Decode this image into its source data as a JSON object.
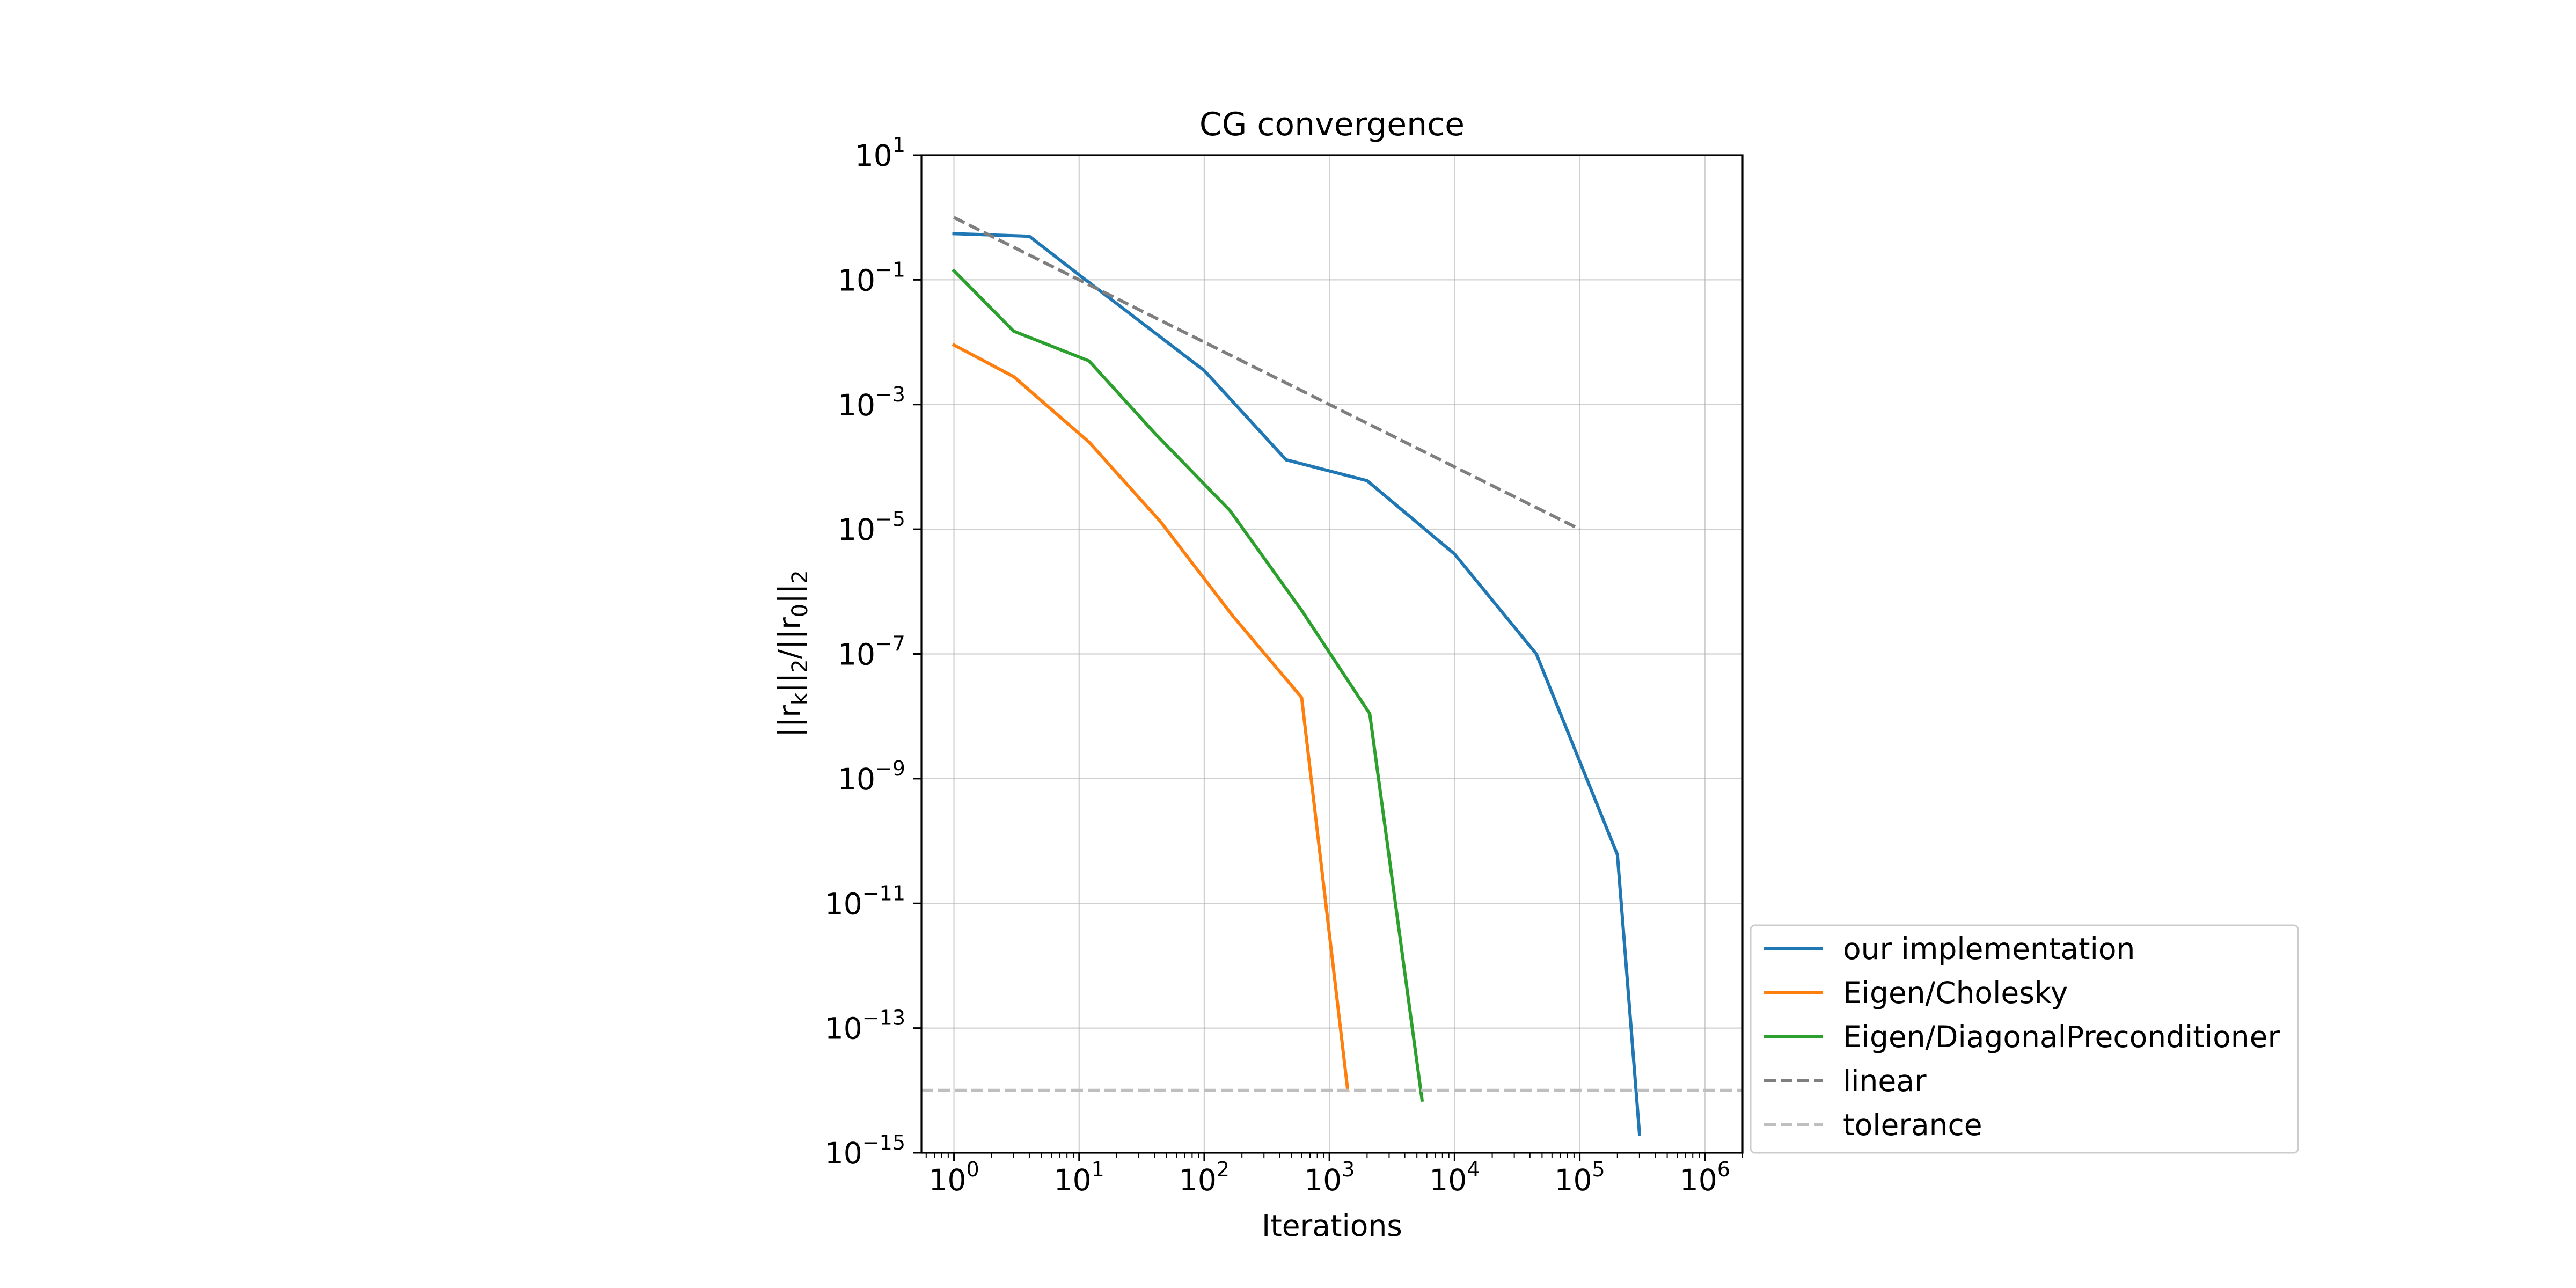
{
  "chart_data": {
    "type": "line",
    "title": "CG convergence",
    "xlabel": "Iterations",
    "ylabel": "||r_k||_2/||r_0||_2",
    "x_scale": "log",
    "y_scale": "log",
    "xlim": [
      0.55,
      2000000
    ],
    "ylim": [
      1e-15,
      10
    ],
    "x_ticks": [
      {
        "value": 1,
        "base": "10",
        "exp": "0"
      },
      {
        "value": 10,
        "base": "10",
        "exp": "1"
      },
      {
        "value": 100,
        "base": "10",
        "exp": "2"
      },
      {
        "value": 1000,
        "base": "10",
        "exp": "3"
      },
      {
        "value": 10000,
        "base": "10",
        "exp": "4"
      },
      {
        "value": 100000,
        "base": "10",
        "exp": "5"
      },
      {
        "value": 1000000,
        "base": "10",
        "exp": "6"
      }
    ],
    "y_ticks": [
      {
        "value": 10.0,
        "base": "10",
        "exp": "1"
      },
      {
        "value": 0.1,
        "base": "10",
        "exp": "−1"
      },
      {
        "value": 0.001,
        "base": "10",
        "exp": "−3"
      },
      {
        "value": 1e-05,
        "base": "10",
        "exp": "−5"
      },
      {
        "value": 1e-07,
        "base": "10",
        "exp": "−7"
      },
      {
        "value": 1e-09,
        "base": "10",
        "exp": "−9"
      },
      {
        "value": 1e-11,
        "base": "10",
        "exp": "−11"
      },
      {
        "value": 1e-13,
        "base": "10",
        "exp": "−13"
      },
      {
        "value": 1e-15,
        "base": "10",
        "exp": "−15"
      }
    ],
    "grid": true,
    "legend_position": "lower-right, outside plot",
    "series": [
      {
        "name": "our implementation",
        "color": "#1f77b4",
        "style": "solid",
        "x": [
          1,
          4,
          10,
          100,
          450,
          2000,
          10000,
          45000,
          200000,
          300000
        ],
        "y": [
          0.55,
          0.5,
          0.12,
          0.0035,
          0.00013,
          6e-05,
          4e-06,
          1e-07,
          6e-11,
          2e-15
        ]
      },
      {
        "name": "Eigen/Cholesky",
        "color": "#ff7f0e",
        "style": "solid",
        "x": [
          1,
          3,
          12,
          45,
          170,
          600,
          1400
        ],
        "y": [
          0.009,
          0.0028,
          0.00025,
          1.3e-05,
          4e-07,
          2e-08,
          1e-14
        ]
      },
      {
        "name": "Eigen/DiagonalPreconditioner",
        "color": "#2ca02c",
        "style": "solid",
        "x": [
          1,
          3,
          12,
          40,
          160,
          600,
          2100,
          5500
        ],
        "y": [
          0.14,
          0.015,
          0.005,
          0.00035,
          2e-05,
          5e-07,
          1.1e-08,
          7e-15
        ]
      },
      {
        "name": "linear",
        "color": "#7f7f7f",
        "style": "dashed",
        "x": [
          1,
          100000
        ],
        "y": [
          1,
          1e-05
        ]
      },
      {
        "name": "tolerance",
        "color": "#bfbfbf",
        "style": "dashed",
        "x": [
          0.55,
          2000000
        ],
        "y": [
          1e-14,
          1e-14
        ]
      }
    ]
  }
}
